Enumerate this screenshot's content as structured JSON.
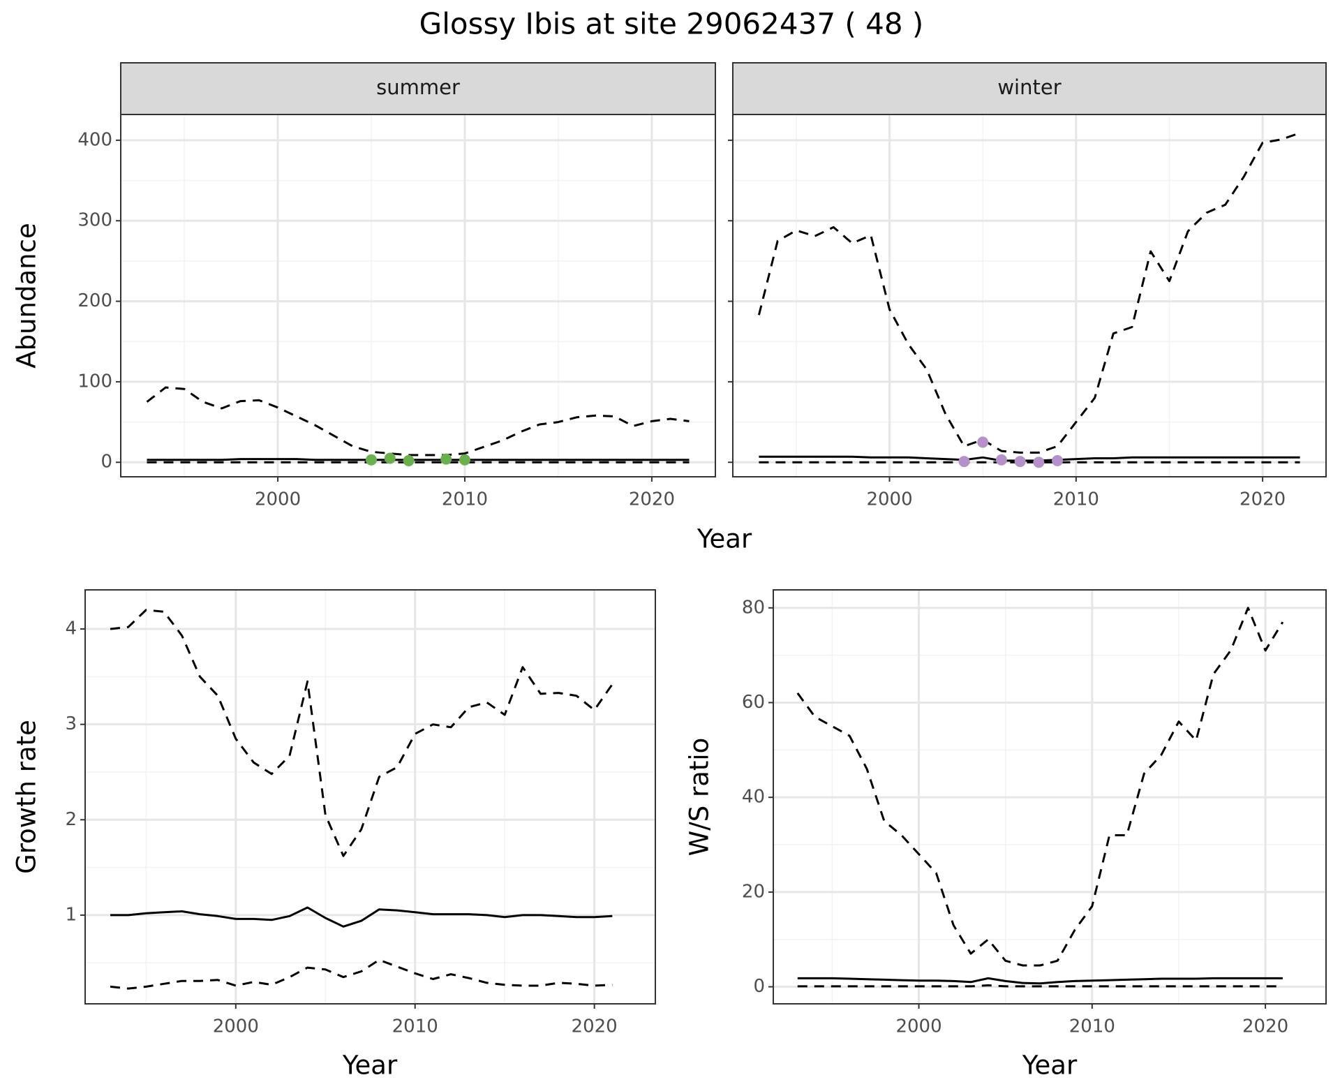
{
  "title": "Glossy Ibis at site 29062437 ( 48 )",
  "chart_data": [
    {
      "type": "line",
      "title": "summer",
      "x_label": "Year",
      "y_label": "Abundance",
      "x": [
        1993,
        1994,
        1995,
        1996,
        1997,
        1998,
        1999,
        2000,
        2001,
        2002,
        2003,
        2004,
        2005,
        2006,
        2007,
        2008,
        2009,
        2010,
        2011,
        2012,
        2013,
        2014,
        2015,
        2016,
        2017,
        2018,
        2019,
        2020,
        2021,
        2022
      ],
      "xlim": [
        1991.6,
        2023.4
      ],
      "xticks": [
        2000,
        2010,
        2020
      ],
      "xminor": [
        1995,
        2005,
        2015
      ],
      "ylim": [
        -18,
        432
      ],
      "yticks": [
        0,
        100,
        200,
        300,
        400
      ],
      "yminor": [
        50,
        150,
        250,
        350
      ],
      "grid": true,
      "series": [
        {
          "color": "#000000",
          "dash": "dashed",
          "values": [
            75,
            93,
            91,
            75,
            67,
            76,
            77,
            68,
            57,
            46,
            33,
            20,
            13,
            11,
            9,
            9,
            9,
            11,
            19,
            27,
            38,
            47,
            50,
            56,
            58,
            57,
            45,
            51,
            54,
            51
          ]
        },
        {
          "color": "#000000",
          "dash": "solid",
          "values": [
            3,
            3,
            3,
            3,
            3,
            4,
            4,
            4,
            4,
            3,
            3,
            3,
            3,
            3,
            3,
            3,
            3,
            3,
            3,
            3,
            3,
            3,
            3,
            3,
            3,
            3,
            3,
            3,
            3,
            3
          ]
        },
        {
          "color": "#000000",
          "dash": "dashed",
          "values": [
            0,
            0,
            0,
            0,
            0,
            0,
            0,
            0,
            0,
            0,
            0,
            0,
            0,
            0,
            0,
            0,
            0,
            0,
            0,
            0,
            0,
            0,
            0,
            0,
            0,
            0,
            0,
            0,
            0,
            0
          ]
        },
        {
          "color": "#6ab04c",
          "mode": "points",
          "x": [
            2005,
            2006,
            2007,
            2009,
            2010
          ],
          "values": [
            3,
            5,
            2,
            4,
            3
          ]
        }
      ]
    },
    {
      "type": "line",
      "title": "winter",
      "sharey": true,
      "x": [
        1993,
        1994,
        1995,
        1996,
        1997,
        1998,
        1999,
        2000,
        2001,
        2002,
        2003,
        2004,
        2005,
        2006,
        2007,
        2008,
        2009,
        2010,
        2011,
        2012,
        2013,
        2014,
        2015,
        2016,
        2017,
        2018,
        2019,
        2020,
        2021,
        2022
      ],
      "xlim": [
        1991.6,
        2023.4
      ],
      "xticks": [
        2000,
        2010,
        2020
      ],
      "xminor": [
        1995,
        2005,
        2015
      ],
      "grid": true,
      "series": [
        {
          "color": "#000000",
          "dash": "dashed",
          "values": [
            183,
            275,
            288,
            281,
            292,
            272,
            282,
            190,
            147,
            115,
            60,
            20,
            28,
            14,
            12,
            12,
            20,
            50,
            80,
            160,
            168,
            262,
            225,
            287,
            310,
            320,
            355,
            397,
            401,
            409
          ]
        },
        {
          "color": "#000000",
          "dash": "solid",
          "values": [
            7,
            7,
            7,
            7,
            7,
            7,
            6,
            6,
            6,
            5,
            4,
            3,
            6,
            2,
            2,
            2,
            3,
            4,
            5,
            5,
            6,
            6,
            6,
            6,
            6,
            6,
            6,
            6,
            6,
            6
          ]
        },
        {
          "color": "#000000",
          "dash": "dashed",
          "values": [
            0,
            0,
            0,
            0,
            0,
            0,
            0,
            0,
            0,
            0,
            0,
            0,
            0,
            0,
            0,
            0,
            0,
            0,
            0,
            0,
            0,
            0,
            0,
            0,
            0,
            0,
            0,
            0,
            0,
            0
          ]
        },
        {
          "color": "#b591c9",
          "mode": "points",
          "x": [
            2004,
            2005,
            2006,
            2007,
            2008,
            2009
          ],
          "values": [
            1,
            25,
            3,
            1,
            0,
            2
          ]
        }
      ]
    },
    {
      "type": "line",
      "x_label": "Year",
      "y_label": "Growth rate",
      "x": [
        1993,
        1994,
        1995,
        1996,
        1997,
        1998,
        1999,
        2000,
        2001,
        2002,
        2003,
        2004,
        2005,
        2006,
        2007,
        2008,
        2009,
        2010,
        2011,
        2012,
        2013,
        2014,
        2015,
        2016,
        2017,
        2018,
        2019,
        2020,
        2021
      ],
      "xlim": [
        1991.6,
        2023.4
      ],
      "xticks": [
        2000,
        2010,
        2020
      ],
      "xminor": [
        1995,
        2005,
        2015
      ],
      "ylim": [
        0.07,
        4.41
      ],
      "yticks": [
        1,
        2,
        3,
        4
      ],
      "yminor": [
        0.5,
        1.5,
        2.5,
        3.5
      ],
      "grid": true,
      "series": [
        {
          "color": "#000000",
          "dash": "dashed",
          "values": [
            4.0,
            4.02,
            4.2,
            4.18,
            3.93,
            3.5,
            3.3,
            2.85,
            2.6,
            2.48,
            2.67,
            3.45,
            2.05,
            1.62,
            1.9,
            2.45,
            2.55,
            2.9,
            3.0,
            2.97,
            3.18,
            3.23,
            3.1,
            3.6,
            3.32,
            3.33,
            3.3,
            3.15,
            3.42
          ]
        },
        {
          "color": "#000000",
          "dash": "solid",
          "values": [
            1.0,
            1.0,
            1.02,
            1.03,
            1.04,
            1.01,
            0.99,
            0.96,
            0.96,
            0.95,
            0.99,
            1.08,
            0.97,
            0.88,
            0.94,
            1.06,
            1.05,
            1.03,
            1.01,
            1.01,
            1.01,
            1.0,
            0.98,
            1.0,
            1.0,
            0.99,
            0.98,
            0.98,
            0.99
          ]
        },
        {
          "color": "#000000",
          "dash": "dashed",
          "values": [
            0.25,
            0.23,
            0.25,
            0.28,
            0.31,
            0.31,
            0.32,
            0.26,
            0.3,
            0.27,
            0.35,
            0.45,
            0.43,
            0.35,
            0.41,
            0.53,
            0.46,
            0.39,
            0.33,
            0.38,
            0.34,
            0.29,
            0.27,
            0.26,
            0.26,
            0.29,
            0.28,
            0.26,
            0.27
          ]
        }
      ]
    },
    {
      "type": "line",
      "x_label": "Year",
      "y_label": "W/S ratio",
      "x": [
        1993,
        1994,
        1995,
        1996,
        1997,
        1998,
        1999,
        2000,
        2001,
        2002,
        2003,
        2004,
        2005,
        2006,
        2007,
        2008,
        2009,
        2010,
        2011,
        2012,
        2013,
        2014,
        2015,
        2016,
        2017,
        2018,
        2019,
        2020,
        2021
      ],
      "xlim": [
        1991.6,
        2023.5
      ],
      "xticks": [
        2000,
        2010,
        2020
      ],
      "xminor": [
        1995,
        2005,
        2015
      ],
      "ylim": [
        -3.6,
        83.8
      ],
      "yticks": [
        0,
        20,
        40,
        60,
        80
      ],
      "yminor": [
        10,
        30,
        50,
        70
      ],
      "grid": true,
      "series": [
        {
          "color": "#000000",
          "dash": "dashed",
          "values": [
            62,
            57,
            55,
            53,
            46,
            35,
            32,
            28,
            24,
            13,
            7,
            10,
            5.5,
            4.5,
            4.5,
            5.5,
            12,
            17,
            32,
            32,
            45,
            49,
            56,
            52,
            66,
            71,
            80,
            71,
            77
          ]
        },
        {
          "color": "#000000",
          "dash": "solid",
          "values": [
            1.8,
            1.8,
            1.8,
            1.7,
            1.6,
            1.5,
            1.4,
            1.3,
            1.3,
            1.2,
            1.0,
            1.8,
            1.2,
            0.8,
            0.7,
            1.0,
            1.2,
            1.3,
            1.4,
            1.5,
            1.6,
            1.7,
            1.7,
            1.7,
            1.8,
            1.8,
            1.8,
            1.8,
            1.8
          ]
        },
        {
          "color": "#000000",
          "dash": "dashed",
          "values": [
            0.1,
            0.1,
            0.1,
            0.1,
            0.1,
            0.1,
            0.1,
            0.1,
            0.1,
            0.1,
            0.1,
            0.3,
            0.1,
            0.1,
            0.1,
            0.1,
            0.1,
            0.1,
            0.1,
            0.1,
            0.1,
            0.1,
            0.1,
            0.1,
            0.1,
            0.1,
            0.1,
            0.1,
            0.1
          ]
        }
      ]
    }
  ]
}
